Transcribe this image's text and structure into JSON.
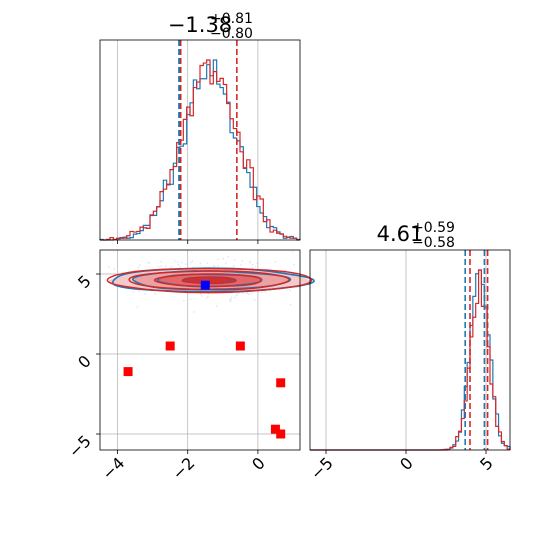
{
  "chart_data": {
    "type": "corner",
    "colors": {
      "series_a": "#1f77b4",
      "series_b": "#d62728",
      "grid": "#b0b0b0"
    },
    "series": [
      {
        "color": "#1f77b4"
      },
      {
        "color": "#d62728"
      }
    ],
    "x_axis": {
      "ticks": [
        -4,
        -2,
        0
      ],
      "tick_labels": [
        "−4",
        "−2",
        "0"
      ],
      "range": [
        -4.5,
        1.2
      ]
    },
    "y_axis": {
      "ticks": [
        5,
        0,
        -5
      ],
      "tick_labels": [
        "5",
        "0",
        "−5"
      ],
      "range": [
        -6,
        6.5
      ]
    },
    "x2_axis": {
      "ticks": [
        -5,
        0,
        5
      ],
      "tick_labels": [
        "−5",
        "0",
        "5"
      ],
      "range": [
        -6,
        6.5
      ]
    },
    "param_1": {
      "title_value": "−1.38",
      "title_upper": "+0.81",
      "title_lower": "−0.80",
      "quantiles": {
        "series_a": [
          -2.25,
          -2.22
        ],
        "series_b": [
          -2.2,
          -0.6
        ]
      },
      "hist_center": -1.38,
      "hist_sigma": 0.8
    },
    "param_2": {
      "title_value": "4.61",
      "title_upper": "+0.59",
      "title_lower": "−0.58",
      "quantiles": {
        "series_a": [
          3.7,
          4.9
        ],
        "series_b": [
          4.0,
          5.1
        ]
      },
      "hist_center": 4.61,
      "hist_sigma": 0.58
    },
    "blue_marker": {
      "x": -1.5,
      "y": 4.3
    },
    "red_markers": [
      {
        "x": -2.5,
        "y": 0.5
      },
      {
        "x": -0.5,
        "y": 0.5
      },
      {
        "x": -3.7,
        "y": -1.1
      },
      {
        "x": 0.65,
        "y": -1.8
      },
      {
        "x": 0.5,
        "y": -4.7
      },
      {
        "x": 0.65,
        "y": -5.0
      }
    ]
  }
}
